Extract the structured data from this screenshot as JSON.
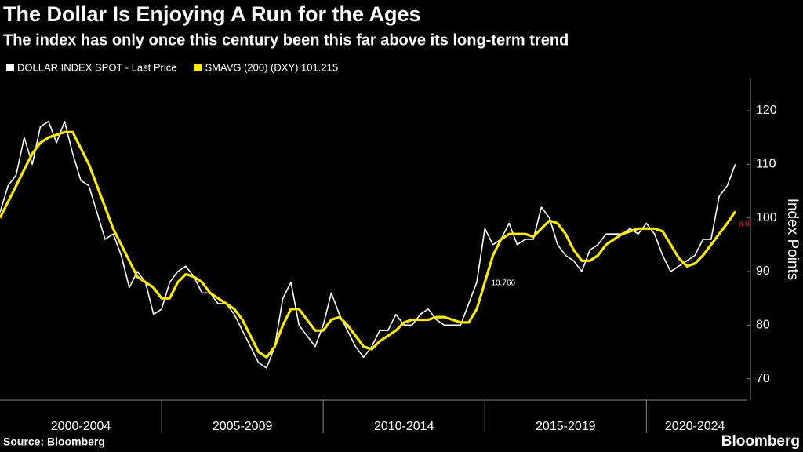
{
  "chart_data": {
    "type": "line",
    "title": "The Dollar Is Enjoying A Run for the Ages",
    "subtitle": "The index has only once this century been this far above its long-term trend",
    "y_axis_label": "Index Points",
    "source": "Source: Bloomberg",
    "brand": "Bloomberg",
    "xlim": [
      2000,
      2023
    ],
    "ylim": [
      66,
      126
    ],
    "yticks": [
      70,
      80,
      90,
      100,
      110,
      120
    ],
    "xticks": [
      2005,
      2010,
      2015,
      2020
    ],
    "periods": [
      {
        "label": "2000-2004",
        "start": 2000,
        "end": 2005
      },
      {
        "label": "2005-2009",
        "start": 2005,
        "end": 2010
      },
      {
        "label": "2010-2014",
        "start": 2010,
        "end": 2015
      },
      {
        "label": "2015-2019",
        "start": 2015,
        "end": 2020
      },
      {
        "label": "2020-2024",
        "start": 2020,
        "end": 2023
      }
    ],
    "x": [
      2000,
      2000.25,
      2000.5,
      2000.75,
      2001,
      2001.25,
      2001.5,
      2001.75,
      2002,
      2002.25,
      2002.5,
      2002.75,
      2003,
      2003.25,
      2003.5,
      2003.75,
      2004,
      2004.25,
      2004.5,
      2004.75,
      2005,
      2005.25,
      2005.5,
      2005.75,
      2006,
      2006.25,
      2006.5,
      2006.75,
      2007,
      2007.25,
      2007.5,
      2007.75,
      2008,
      2008.25,
      2008.5,
      2008.75,
      2009,
      2009.25,
      2009.5,
      2009.75,
      2010,
      2010.25,
      2010.5,
      2010.75,
      2011,
      2011.25,
      2011.5,
      2011.75,
      2012,
      2012.25,
      2012.5,
      2012.75,
      2013,
      2013.25,
      2013.5,
      2013.75,
      2014,
      2014.25,
      2014.5,
      2014.75,
      2015,
      2015.25,
      2015.5,
      2015.75,
      2016,
      2016.25,
      2016.5,
      2016.75,
      2017,
      2017.25,
      2017.5,
      2017.75,
      2018,
      2018.25,
      2018.5,
      2018.75,
      2019,
      2019.25,
      2019.5,
      2019.75,
      2020,
      2020.25,
      2020.5,
      2020.75,
      2021,
      2021.25,
      2021.5,
      2021.75,
      2022,
      2022.25,
      2022.5,
      2022.75
    ],
    "series": [
      {
        "name": "DOLLAR INDEX SPOT - Last Price",
        "color": "#ffffff",
        "values": [
          101,
          106,
          108,
          115,
          110,
          117,
          118,
          114,
          118,
          112,
          107,
          106,
          101,
          96,
          97,
          93,
          87,
          90,
          88,
          82,
          83,
          88,
          90,
          91,
          89,
          86,
          86,
          84,
          84,
          82,
          79,
          76,
          73,
          72,
          76,
          85,
          88,
          80,
          78,
          76,
          80,
          86,
          82,
          79,
          76,
          74,
          76,
          79,
          79,
          82,
          80,
          80,
          82,
          83,
          81,
          80,
          80,
          80,
          84,
          88,
          98,
          95,
          96,
          99,
          95,
          96,
          96,
          102,
          100,
          95,
          93,
          92,
          90,
          94,
          95,
          97,
          97,
          97,
          98,
          97,
          99,
          97,
          93,
          90,
          91,
          92,
          93,
          96,
          96,
          104,
          106,
          110
        ]
      },
      {
        "name": "SMAVG (200) (DXY) 101.215",
        "color": "#ffeb00",
        "values": [
          100,
          103,
          106,
          109,
          112,
          114,
          115,
          115.5,
          116,
          116,
          113,
          110,
          106,
          102,
          98,
          95,
          92,
          89,
          88,
          87,
          85,
          85,
          88,
          89.5,
          89,
          88,
          86,
          85,
          84,
          83,
          81,
          78,
          75,
          74,
          76,
          80,
          83,
          83,
          81,
          79,
          79,
          81,
          81.5,
          80,
          78,
          76,
          75.5,
          77,
          78,
          79,
          80.5,
          81,
          81,
          81,
          81.5,
          81.5,
          81,
          80.5,
          80.5,
          83,
          88,
          93,
          96,
          97,
          97,
          97,
          96.5,
          98,
          99.5,
          99,
          97,
          94,
          92,
          92,
          93,
          95,
          96,
          97,
          97.5,
          98,
          98,
          98,
          97.5,
          95,
          92.5,
          91,
          91.5,
          93,
          95,
          97,
          99,
          101.215
        ]
      }
    ],
    "annotations": [
      {
        "text": "10.766",
        "x": 2015.2,
        "y": 89,
        "color": "#ffffff"
      },
      {
        "text": "8.8",
        "x": 2022.85,
        "y": 100,
        "color": "#e02020"
      }
    ]
  }
}
